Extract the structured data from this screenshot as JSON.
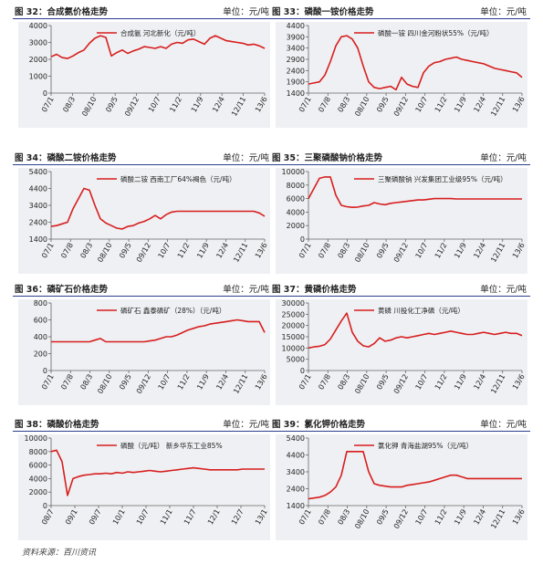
{
  "source_note": "资料来源：百川资讯",
  "charts": [
    {
      "figure_title": "图 32：合成氨价格走势",
      "unit": "单位：元/吨",
      "chart_data": {
        "type": "line",
        "legend": "合成氨 河北新化（元/吨）",
        "ylim": [
          0,
          4000
        ],
        "yticks": [
          0,
          1000,
          2000,
          3000,
          4000
        ],
        "x_labels": [
          "07/1",
          "08/3",
          "08/10",
          "09/5",
          "09/12",
          "10/7",
          "11/2",
          "11/9",
          "12/4",
          "12/11",
          "13/6"
        ],
        "series": [
          {
            "values": [
              2150,
              2300,
              2100,
              2050,
              2200,
              2400,
              2550,
              2950,
              3250,
              3400,
              3300,
              2200,
              2400,
              2550,
              2350,
              2500,
              2600,
              2750,
              2700,
              2650,
              2750,
              2650,
              2900,
              3000,
              2950,
              3150,
              3200,
              3050,
              2900,
              3250,
              3400,
              3250,
              3100,
              3050,
              3000,
              2950,
              2850,
              2900,
              2800,
              2650
            ]
          }
        ],
        "grid": false,
        "legend_position": "top"
      }
    },
    {
      "figure_title": "图 33：磷酸一铵价格走势",
      "unit": "单位：元/吨",
      "chart_data": {
        "type": "line",
        "legend": "磷酸一铵 四川金河粉状55%（元/吨）",
        "ylim": [
          1400,
          4400
        ],
        "yticks": [
          1400,
          1900,
          2400,
          2900,
          3400,
          3900,
          4400
        ],
        "x_labels": [
          "07/1",
          "07/8",
          "08/3",
          "08/10",
          "09/5",
          "09/12",
          "10/7",
          "11/2",
          "11/9",
          "12/4",
          "12/11",
          "13/6"
        ],
        "series": [
          {
            "values": [
              1800,
              1850,
              1900,
              2200,
              2800,
              3500,
              3900,
              3950,
              3800,
              3400,
              2600,
              1900,
              1650,
              1600,
              1650,
              1700,
              1550,
              2100,
              1800,
              1700,
              1650,
              2300,
              2600,
              2750,
              2800,
              2900,
              2950,
              3000,
              2900,
              2850,
              2800,
              2750,
              2700,
              2600,
              2500,
              2450,
              2400,
              2350,
              2300,
              2100
            ]
          }
        ],
        "grid": false,
        "legend_position": "top"
      }
    },
    {
      "figure_title": "图 34：磷酸二铵价格走势",
      "unit": "单位：元/吨",
      "chart_data": {
        "type": "line",
        "legend": "磷酸二铵 西南工厂64%褐色（元/吨）",
        "ylim": [
          1400,
          5400
        ],
        "yticks": [
          1400,
          2400,
          3400,
          4400,
          5400
        ],
        "x_labels": [
          "07/1",
          "07/8",
          "08/3",
          "08/10",
          "09/5",
          "09/12",
          "10/7",
          "11/2",
          "11/9",
          "12/4",
          "12/11",
          "13/6"
        ],
        "series": [
          {
            "values": [
              2150,
              2200,
              2300,
              2400,
              3200,
              3800,
              4400,
              4300,
              3400,
              2600,
              2350,
              2200,
              2050,
              2000,
              2150,
              2200,
              2350,
              2450,
              2600,
              2800,
              2600,
              2850,
              3000,
              3050,
              3050,
              3050,
              3050,
              3050,
              3050,
              3050,
              3050,
              3050,
              3050,
              3050,
              3050,
              3050,
              3050,
              3050,
              2950,
              2750
            ]
          }
        ],
        "grid": false,
        "legend_position": "top"
      }
    },
    {
      "figure_title": "图 35：三聚磷酸钠价格走势",
      "unit": "单位：元/吨",
      "chart_data": {
        "type": "line",
        "legend": "三聚磷酸钠 兴发集团工业级95%（元/吨）",
        "ylim": [
          0,
          10000
        ],
        "yticks": [
          0,
          2000,
          4000,
          6000,
          8000,
          10000
        ],
        "x_labels": [
          "07/1",
          "07/8",
          "08/3",
          "08/10",
          "09/5",
          "09/12",
          "10/7",
          "11/2",
          "11/9",
          "12/4",
          "12/11",
          "13/6"
        ],
        "series": [
          {
            "values": [
              6000,
              7500,
              9000,
              9200,
              9200,
              6500,
              5000,
              4800,
              4700,
              4750,
              4900,
              5000,
              5400,
              5200,
              5100,
              5300,
              5400,
              5500,
              5600,
              5700,
              5800,
              5800,
              5900,
              6000,
              6000,
              6000,
              6000,
              5950,
              5950,
              5950,
              5950,
              5950,
              5950,
              5950,
              5950,
              5950,
              5950,
              5950,
              5950,
              5950
            ]
          }
        ],
        "grid": false,
        "legend_position": "top"
      }
    },
    {
      "figure_title": "图 36：磷矿石价格走势",
      "unit": "单位：元/吨",
      "chart_data": {
        "type": "line",
        "legend": "磷矿石 鑫泰磷矿（28%）（元/吨）",
        "ylim": [
          0,
          800
        ],
        "yticks": [
          0,
          200,
          400,
          600,
          800
        ],
        "x_labels": [
          "07/1",
          "07/8",
          "08/3",
          "08/10",
          "09/5",
          "09/12",
          "10/7",
          "11/2",
          "11/9",
          "12/4",
          "12/11",
          "13/6"
        ],
        "series": [
          {
            "values": [
              340,
              340,
              340,
              340,
              340,
              340,
              340,
              340,
              360,
              380,
              340,
              340,
              340,
              340,
              340,
              340,
              340,
              340,
              350,
              360,
              380,
              400,
              400,
              420,
              450,
              480,
              500,
              520,
              530,
              550,
              560,
              570,
              580,
              590,
              600,
              590,
              580,
              580,
              580,
              450
            ]
          }
        ],
        "grid": false,
        "legend_position": "top"
      }
    },
    {
      "figure_title": "图 37：黄磷价格走势",
      "unit": "单位：元/吨",
      "chart_data": {
        "type": "line",
        "legend": "黄磷 川投化工净磷（元/吨）",
        "ylim": [
          0,
          30000
        ],
        "yticks": [
          0,
          5000,
          10000,
          15000,
          20000,
          25000,
          30000
        ],
        "x_labels": [
          "07/1",
          "07/8",
          "08/3",
          "08/10",
          "09/5",
          "09/12",
          "10/7",
          "11/2",
          "11/9",
          "12/4",
          "12/11",
          "13/6"
        ],
        "series": [
          {
            "values": [
              10000,
              10500,
              10800,
              11500,
              14000,
              18000,
              22000,
              25500,
              17000,
              13000,
              11000,
              10500,
              12000,
              14500,
              13000,
              13500,
              14500,
              15000,
              14500,
              15000,
              15500,
              16000,
              16500,
              16000,
              16500,
              17000,
              17500,
              17000,
              16500,
              16000,
              16000,
              16500,
              17000,
              16500,
              16000,
              16500,
              17000,
              16500,
              16500,
              15500
            ]
          }
        ],
        "grid": false,
        "legend_position": "top"
      }
    },
    {
      "figure_title": "图 38：磷酸价格走势",
      "unit": "单位：元/吨",
      "chart_data": {
        "type": "line",
        "legend": "磷酸（元/吨） 新乡华东工业85%",
        "ylim": [
          0,
          10000
        ],
        "yticks": [
          0,
          2000,
          4000,
          6000,
          8000,
          10000
        ],
        "x_labels": [
          "08/7",
          "09/1",
          "09/7",
          "10/1",
          "10/7",
          "11/1",
          "11/7",
          "12/1",
          "12/7",
          "13/1"
        ],
        "series": [
          {
            "values": [
              8000,
              8200,
              6500,
              1500,
              4000,
              4300,
              4500,
              4600,
              4700,
              4700,
              4800,
              4700,
              4900,
              4800,
              5000,
              4900,
              5000,
              5100,
              5200,
              5100,
              5000,
              5100,
              5200,
              5300,
              5400,
              5500,
              5600,
              5500,
              5400,
              5300,
              5300,
              5300,
              5300,
              5300,
              5300,
              5400,
              5400,
              5400,
              5400,
              5400
            ]
          }
        ],
        "grid": false,
        "legend_position": "top"
      }
    },
    {
      "figure_title": "图 39：氯化钾价格走势",
      "unit": "单位：元/吨",
      "chart_data": {
        "type": "line",
        "legend": "氯化钾 青海盐湖95%（元/吨）",
        "ylim": [
          1400,
          5400
        ],
        "yticks": [
          1400,
          2400,
          3400,
          4400,
          5400
        ],
        "x_labels": [
          "07/1",
          "07/8",
          "08/3",
          "08/10",
          "09/5",
          "09/12",
          "10/7",
          "11/2",
          "11/9",
          "12/4",
          "12/11",
          "13/6"
        ],
        "series": [
          {
            "values": [
              1800,
              1850,
              1900,
              2000,
              2200,
              2500,
              3200,
              4600,
              4600,
              4600,
              4600,
              3400,
              2700,
              2600,
              2550,
              2500,
              2500,
              2500,
              2600,
              2650,
              2700,
              2750,
              2800,
              2900,
              3000,
              3100,
              3200,
              3200,
              3100,
              3000,
              3000,
              3000,
              3000,
              3000,
              3000,
              3000,
              3000,
              3000,
              3000,
              3000
            ]
          }
        ],
        "grid": false,
        "legend_position": "top"
      }
    }
  ]
}
